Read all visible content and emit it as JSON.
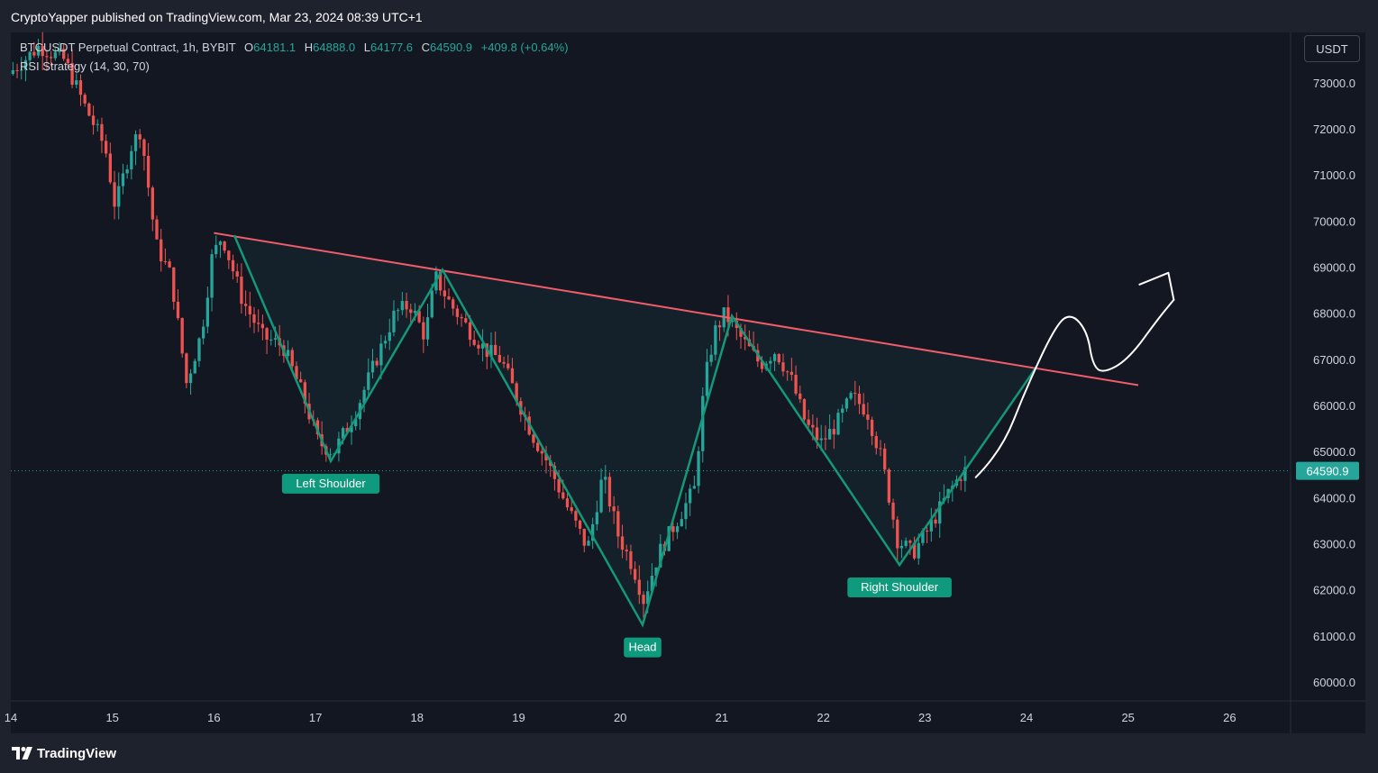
{
  "header": {
    "published": "CryptoYapper published on TradingView.com, Mar 23, 2024 08:39 UTC+1"
  },
  "legend": {
    "symbol": "BTCUSDT Perpetual Contract, 1h, BYBIT",
    "o_label": "O",
    "o_value": "64181.1",
    "h_label": "H",
    "h_value": "64888.0",
    "l_label": "L",
    "l_value": "64177.6",
    "c_label": "C",
    "c_value": "64590.9",
    "change": "+409.8 (+0.64%)",
    "indicator": "RSI Strategy (14, 30, 70)"
  },
  "currency_button": "USDT",
  "footer": {
    "brand": "TradingView",
    "logo_icon": "tradingview-logo-icon"
  },
  "colors": {
    "background": "#131722",
    "up": "#26a69a",
    "down": "#ef5350",
    "pattern": "#13987a",
    "neckline": "#f05c6a",
    "label_bg": "#0f9a7d"
  },
  "chart_data": {
    "type": "candlestick",
    "symbol": "BTCUSDT",
    "interval": "1h",
    "x_ticks": [
      "14",
      "15",
      "16",
      "17",
      "18",
      "19",
      "20",
      "21",
      "22",
      "23",
      "24",
      "25",
      "26"
    ],
    "x_range_days": [
      14.0,
      26.6
    ],
    "y_ticks": [
      "73000.0",
      "72000.0",
      "71000.0",
      "70000.0",
      "69000.0",
      "68000.0",
      "67000.0",
      "66000.0",
      "65000.0",
      "64000.0",
      "63000.0",
      "62000.0",
      "61000.0",
      "60000.0"
    ],
    "ylim": [
      59600,
      74100
    ],
    "last_price": 64590.9,
    "last_price_label": "64590.9",
    "price_path": [
      [
        14.0,
        73200
      ],
      [
        14.3,
        73800
      ],
      [
        14.55,
        73500
      ],
      [
        14.75,
        72500
      ],
      [
        14.95,
        71600
      ],
      [
        15.05,
        70300
      ],
      [
        15.2,
        71600
      ],
      [
        15.3,
        72000
      ],
      [
        15.45,
        69500
      ],
      [
        15.6,
        68800
      ],
      [
        15.75,
        66500
      ],
      [
        15.9,
        67600
      ],
      [
        16.0,
        69200
      ],
      [
        16.1,
        69700
      ],
      [
        16.3,
        68300
      ],
      [
        16.5,
        67500
      ],
      [
        16.7,
        67300
      ],
      [
        16.9,
        66200
      ],
      [
        17.05,
        65200
      ],
      [
        17.2,
        65000
      ],
      [
        17.4,
        65800
      ],
      [
        17.6,
        66900
      ],
      [
        17.8,
        68000
      ],
      [
        17.95,
        68200
      ],
      [
        18.1,
        67500
      ],
      [
        18.2,
        68800
      ],
      [
        18.35,
        68200
      ],
      [
        18.55,
        67600
      ],
      [
        18.7,
        67200
      ],
      [
        18.85,
        67000
      ],
      [
        19.0,
        66200
      ],
      [
        19.15,
        65400
      ],
      [
        19.3,
        64800
      ],
      [
        19.5,
        63800
      ],
      [
        19.7,
        62900
      ],
      [
        19.85,
        64500
      ],
      [
        20.0,
        63200
      ],
      [
        20.15,
        62500
      ],
      [
        20.25,
        61800
      ],
      [
        20.4,
        62800
      ],
      [
        20.6,
        63600
      ],
      [
        20.75,
        64200
      ],
      [
        20.85,
        66500
      ],
      [
        20.95,
        67600
      ],
      [
        21.05,
        68000
      ],
      [
        21.2,
        67500
      ],
      [
        21.4,
        66900
      ],
      [
        21.55,
        67200
      ],
      [
        21.7,
        66600
      ],
      [
        21.85,
        65600
      ],
      [
        22.0,
        65200
      ],
      [
        22.15,
        65600
      ],
      [
        22.3,
        66200
      ],
      [
        22.45,
        65900
      ],
      [
        22.6,
        64800
      ],
      [
        22.75,
        63100
      ],
      [
        22.9,
        62800
      ],
      [
        23.05,
        63300
      ],
      [
        23.25,
        64100
      ],
      [
        23.4,
        64591
      ]
    ],
    "pattern": {
      "name": "Inverse Head and Shoulders",
      "zigzag": [
        [
          16.2,
          69700
        ],
        [
          17.15,
          64800
        ],
        [
          18.25,
          68950
        ],
        [
          20.22,
          61250
        ],
        [
          21.1,
          67950
        ],
        [
          22.75,
          62550
        ],
        [
          24.1,
          66850
        ]
      ],
      "neckline": [
        [
          16.0,
          69750
        ],
        [
          25.1,
          66450
        ]
      ],
      "labels": [
        {
          "text": "Left Shoulder",
          "day": 17.15,
          "price": 64800
        },
        {
          "text": "Head",
          "day": 20.22,
          "price": 61250
        },
        {
          "text": "Right Shoulder",
          "day": 22.75,
          "price": 62550
        }
      ]
    },
    "projection_path": [
      [
        23.5,
        64450
      ],
      [
        23.75,
        65000
      ],
      [
        24.0,
        66400
      ],
      [
        24.3,
        67800
      ],
      [
        24.45,
        68000
      ],
      [
        24.6,
        67600
      ],
      [
        24.65,
        66900
      ],
      [
        24.75,
        66700
      ],
      [
        25.0,
        67000
      ],
      [
        25.3,
        67900
      ],
      [
        25.45,
        68300
      ]
    ]
  }
}
